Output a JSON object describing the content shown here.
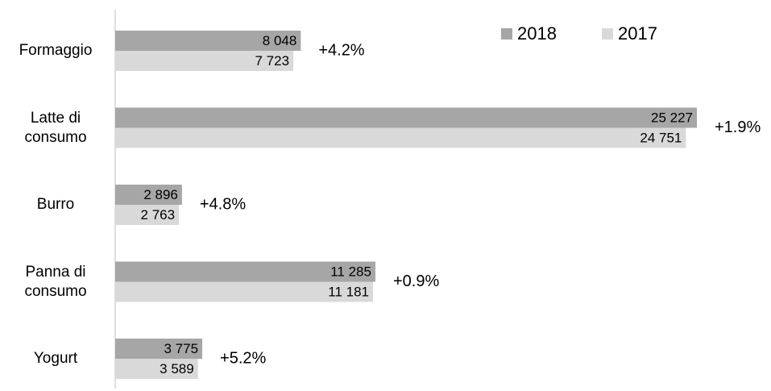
{
  "chart_data": {
    "type": "bar",
    "orientation": "horizontal",
    "categories": [
      "Formaggio",
      "Latte di consumo",
      "Burro",
      "Panna di consumo",
      "Yogurt"
    ],
    "series": [
      {
        "name": "2018",
        "color": "#a6a6a6",
        "values": [
          8048,
          25227,
          2896,
          11285,
          3775
        ],
        "value_labels": [
          "8 048",
          "25 227",
          "2 896",
          "11 285",
          "3 775"
        ]
      },
      {
        "name": "2017",
        "color": "#d9d9d9",
        "values": [
          7723,
          24751,
          2763,
          11181,
          3589
        ],
        "value_labels": [
          "7 723",
          "24 751",
          "2 763",
          "11 181",
          "3 589"
        ]
      }
    ],
    "annotations": [
      "+4.2%",
      "+1.9%",
      "+4.8%",
      "+0.9%",
      "+5.2%"
    ],
    "legend": "top-right"
  }
}
